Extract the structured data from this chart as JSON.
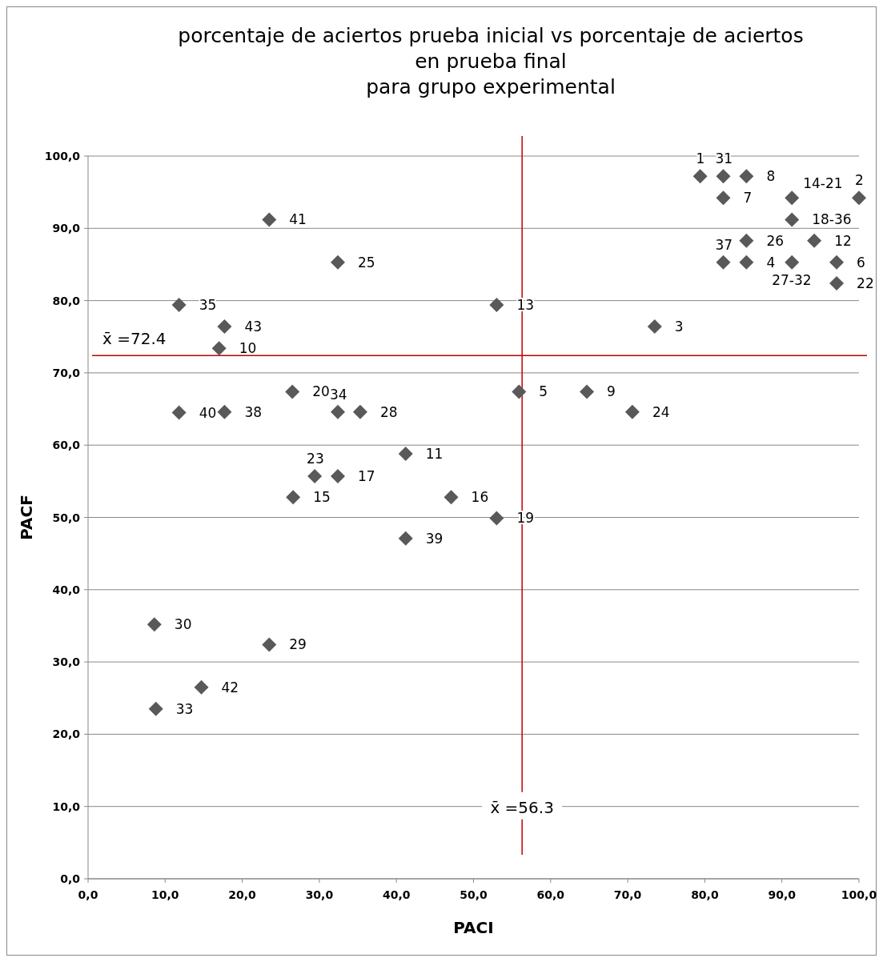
{
  "chart_data": {
    "type": "scatter",
    "title": "porcentaje de aciertos prueba inicial vs porcentaje de aciertos\nen prueba final\npara grupo experimental",
    "xlabel": "PACI",
    "ylabel": "PACF",
    "x": [
      79.4,
      82.4,
      85.4,
      82.4,
      91.3,
      100,
      91.3,
      85.4,
      94.2,
      82.4,
      85.4,
      91.3,
      97.1,
      97.1,
      23.5,
      32.4,
      11.8,
      53.0,
      17.7,
      73.5,
      17.0,
      26.5,
      55.9,
      64.7,
      11.8,
      17.7,
      32.4,
      35.3,
      70.6,
      41.2,
      29.4,
      32.4,
      26.6,
      47.1,
      53.0,
      41.2,
      8.6,
      23.5,
      14.7,
      8.8
    ],
    "series": [
      {
        "color": "#595959",
        "values": [
          97.2,
          97.2,
          97.2,
          94.2,
          94.2,
          94.2,
          91.2,
          88.3,
          88.3,
          85.3,
          85.3,
          85.3,
          85.3,
          82.4,
          91.2,
          85.3,
          79.4,
          79.4,
          76.4,
          76.4,
          73.4,
          67.4,
          67.4,
          67.4,
          64.5,
          64.6,
          64.6,
          64.6,
          64.6,
          58.8,
          55.7,
          55.7,
          52.8,
          52.8,
          49.9,
          47.1,
          35.2,
          32.4,
          26.5,
          23.5
        ]
      }
    ],
    "annotations": [
      {
        "text": "1",
        "x": 79.4,
        "y": 97.2
      },
      {
        "text": "31",
        "x": 82.4,
        "y": 97.2
      },
      {
        "text": "8",
        "x": 85.4,
        "y": 97.2
      },
      {
        "text": "7",
        "x": 82.4,
        "y": 94.2
      },
      {
        "text": "14-21",
        "x": 91.3,
        "y": 94.2
      },
      {
        "text": "2",
        "x": 100,
        "y": 94.2
      },
      {
        "text": "18-36",
        "x": 91.3,
        "y": 91.2
      },
      {
        "text": "26",
        "x": 85.4,
        "y": 88.3
      },
      {
        "text": "12",
        "x": 94.2,
        "y": 88.3
      },
      {
        "text": "37",
        "x": 82.4,
        "y": 85.3
      },
      {
        "text": "4",
        "x": 85.4,
        "y": 85.3
      },
      {
        "text": "27-32",
        "x": 91.3,
        "y": 85.3
      },
      {
        "text": "6",
        "x": 97.1,
        "y": 85.3
      },
      {
        "text": "22",
        "x": 97.1,
        "y": 82.4
      },
      {
        "text": "41",
        "x": 23.5,
        "y": 91.2
      },
      {
        "text": "25",
        "x": 32.4,
        "y": 85.3
      },
      {
        "text": "35",
        "x": 11.8,
        "y": 79.4
      },
      {
        "text": "13",
        "x": 53.0,
        "y": 79.4
      },
      {
        "text": "43",
        "x": 17.7,
        "y": 76.4
      },
      {
        "text": "3",
        "x": 73.5,
        "y": 76.4
      },
      {
        "text": "10",
        "x": 17.0,
        "y": 73.4
      },
      {
        "text": "20",
        "x": 26.5,
        "y": 67.4
      },
      {
        "text": "5",
        "x": 55.9,
        "y": 67.4
      },
      {
        "text": "9",
        "x": 64.7,
        "y": 67.4
      },
      {
        "text": "40",
        "x": 11.8,
        "y": 64.5
      },
      {
        "text": "38",
        "x": 17.7,
        "y": 64.6
      },
      {
        "text": "34",
        "x": 32.4,
        "y": 64.6
      },
      {
        "text": "28",
        "x": 35.3,
        "y": 64.6
      },
      {
        "text": "24",
        "x": 70.6,
        "y": 64.6
      },
      {
        "text": "11",
        "x": 41.2,
        "y": 58.8
      },
      {
        "text": "23",
        "x": 29.4,
        "y": 55.7
      },
      {
        "text": "17",
        "x": 32.4,
        "y": 55.7
      },
      {
        "text": "15",
        "x": 26.6,
        "y": 52.8
      },
      {
        "text": "16",
        "x": 47.1,
        "y": 52.8
      },
      {
        "text": "19",
        "x": 53.0,
        "y": 49.9
      },
      {
        "text": "39",
        "x": 41.2,
        "y": 47.1
      },
      {
        "text": "30",
        "x": 8.6,
        "y": 35.2
      },
      {
        "text": "29",
        "x": 23.5,
        "y": 32.4
      },
      {
        "text": "42",
        "x": 14.7,
        "y": 26.5
      },
      {
        "text": "33",
        "x": 8.8,
        "y": 23.5
      }
    ],
    "ref_lines": [
      {
        "axis": "y",
        "value": 72.4,
        "label": "x̄ =72.4",
        "color": "#c00000"
      },
      {
        "axis": "x",
        "value": 56.3,
        "label": "x̄ =56.3",
        "color": "#c00000"
      }
    ],
    "xlim": [
      0,
      100
    ],
    "ylim": [
      0,
      100
    ],
    "xticks": [
      {
        "value": 0,
        "label": "0,0"
      },
      {
        "value": 10,
        "label": "10,0"
      },
      {
        "value": 20,
        "label": "20,0"
      },
      {
        "value": 30,
        "label": "30,0"
      },
      {
        "value": 40,
        "label": "40,0"
      },
      {
        "value": 50,
        "label": "50,0"
      },
      {
        "value": 60,
        "label": "60,0"
      },
      {
        "value": 70,
        "label": "70,0"
      },
      {
        "value": 80,
        "label": "80,0"
      },
      {
        "value": 90,
        "label": "90,0"
      },
      {
        "value": 100,
        "label": "100,0"
      }
    ],
    "yticks": [
      {
        "value": 0,
        "label": "0,0"
      },
      {
        "value": 10,
        "label": "10,0"
      },
      {
        "value": 20,
        "label": "20,0"
      },
      {
        "value": 30,
        "label": "30,0"
      },
      {
        "value": 40,
        "label": "40,0"
      },
      {
        "value": 50,
        "label": "50,0"
      },
      {
        "value": 60,
        "label": "60,0"
      },
      {
        "value": 70,
        "label": "70,0"
      },
      {
        "value": 80,
        "label": "80,0"
      },
      {
        "value": 90,
        "label": "90,0"
      },
      {
        "value": 100,
        "label": "100,0"
      }
    ],
    "grid": "y",
    "marker": "diamond"
  }
}
